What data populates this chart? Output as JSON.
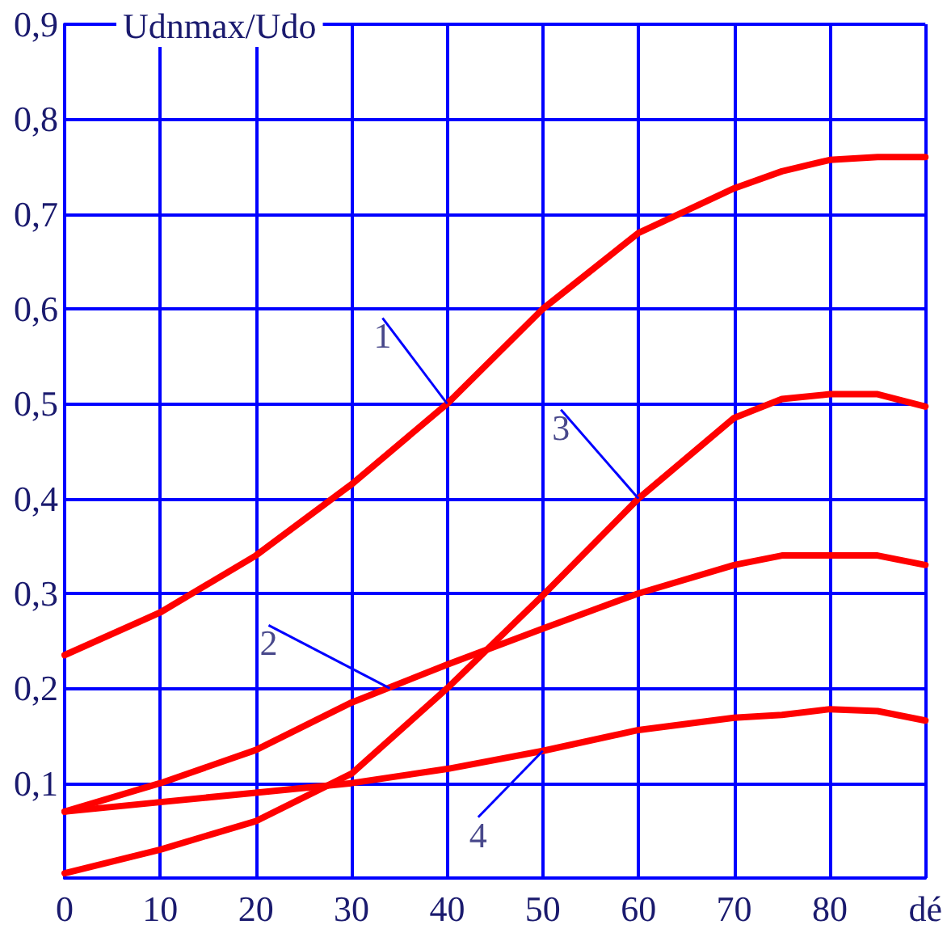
{
  "chart_data": {
    "type": "line",
    "ylabel": "Udnmax/Udo",
    "x": [
      0,
      10,
      20,
      30,
      40,
      50,
      60,
      70,
      75,
      80,
      85,
      90
    ],
    "series": [
      {
        "color": "#ff0000",
        "values": [
          0.235,
          0.28,
          0.34,
          0.415,
          0.5,
          0.6,
          0.68,
          0.727,
          0.745,
          0.757,
          0.76,
          0.76
        ]
      },
      {
        "color": "#ff0000",
        "values": [
          0.07,
          0.1,
          0.135,
          0.185,
          0.225,
          0.263,
          0.3,
          0.33,
          0.34,
          0.34,
          0.34,
          0.33
        ]
      },
      {
        "color": "#ff0000",
        "values": [
          0.005,
          0.03,
          0.06,
          0.11,
          0.2,
          0.298,
          0.4,
          0.485,
          0.505,
          0.51,
          0.51,
          0.497
        ]
      },
      {
        "color": "#ff0000",
        "values": [
          0.07,
          0.08,
          0.09,
          0.1,
          0.115,
          0.134,
          0.156,
          0.169,
          0.172,
          0.178,
          0.176,
          0.166
        ]
      }
    ],
    "annotations": [
      {
        "text": "1",
        "x": 40,
        "y": 0.5
      },
      {
        "text": "2",
        "x": 34,
        "y": 0.2
      },
      {
        "text": "3",
        "x": 60,
        "y": 0.4
      },
      {
        "text": "4",
        "x": 50,
        "y": 0.134
      }
    ],
    "xlim": [
      0,
      90
    ],
    "xticks": [
      0,
      10,
      20,
      30,
      40,
      50,
      60,
      70,
      80,
      {
        "value": 90,
        "label": "dé"
      }
    ],
    "ylim": [
      0,
      0.9
    ],
    "yticks": [
      {
        "value": 0,
        "label": null
      },
      {
        "value": 0.1,
        "label": "0,1"
      },
      {
        "value": 0.2,
        "label": "0,2"
      },
      {
        "value": 0.3,
        "label": "0,3"
      },
      {
        "value": 0.4,
        "label": "0,4"
      },
      {
        "value": 0.5,
        "label": "0,5"
      },
      {
        "value": 0.6,
        "label": "0,6"
      },
      {
        "value": 0.7,
        "label": "0,7"
      },
      {
        "value": 0.8,
        "label": "0,8"
      },
      {
        "value": 0.9,
        "label": "0,9"
      }
    ],
    "grid": true,
    "marker": "none",
    "line_style": "solid"
  }
}
